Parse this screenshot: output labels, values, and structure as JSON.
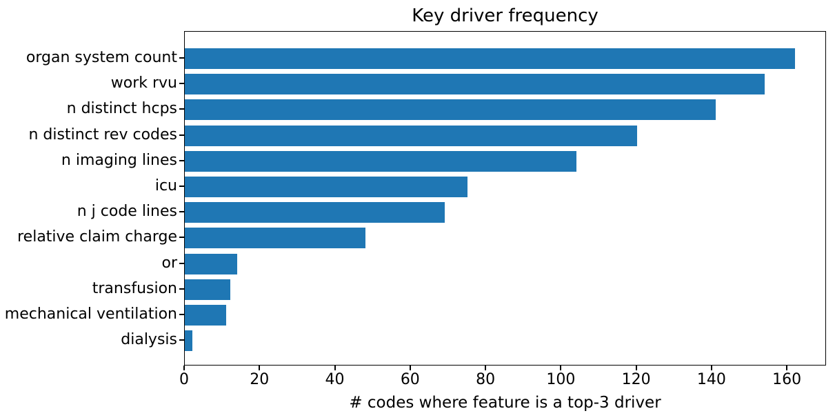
{
  "chart_data": {
    "type": "bar",
    "orientation": "horizontal",
    "title": "Key driver frequency",
    "xlabel": "# codes where feature is a top-3 driver",
    "ylabel": "",
    "categories": [
      "organ system count",
      "work rvu",
      "n distinct hcps",
      "n distinct rev codes",
      "n imaging lines",
      "icu",
      "n j code lines",
      "relative claim charge",
      "or",
      "transfusion",
      "mechanical ventilation",
      "dialysis"
    ],
    "values": [
      162,
      154,
      141,
      120,
      104,
      75,
      69,
      48,
      14,
      12,
      11,
      2
    ],
    "xticks": [
      0,
      20,
      40,
      60,
      80,
      100,
      120,
      140,
      160
    ],
    "xlim": [
      0,
      170.4
    ],
    "grid": false,
    "legend": null,
    "bar_color": "#1f77b4",
    "text_color": "#000000",
    "spine_color": "#000000",
    "background_color": "#ffffff"
  }
}
